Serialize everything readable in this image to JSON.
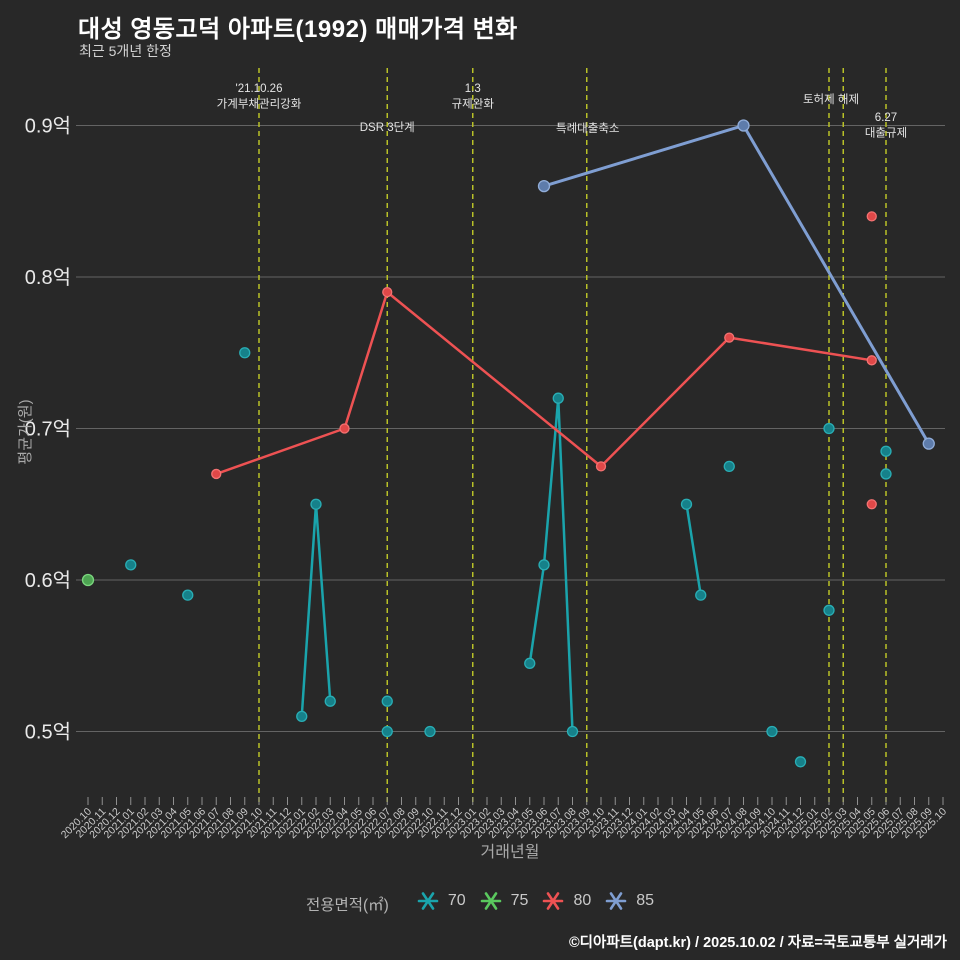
{
  "header": {
    "title": "대성 영동고덕 아파트(1992) 매매가격 변화",
    "subtitle": "최근 5개년 한정"
  },
  "footer": {
    "credit": "©디아파트(dapt.kr) / 2025.10.02 / 자료=국토교통부 실거래가"
  },
  "chart_data": {
    "type": "line",
    "title": "대성 영동고덕 아파트(1992) 매매가격 변화",
    "subtitle": "최근 5개년 한정",
    "xlabel": "거래년월",
    "ylabel": "평균가(원)",
    "legend_title": "전용면적(㎡)",
    "legend_position": "bottom",
    "grid": true,
    "unit": "억",
    "ylim": [
      0.5,
      0.9
    ],
    "y_ticks": [
      {
        "label": "0.5억",
        "value": 0.5
      },
      {
        "label": "0.6억",
        "value": 0.6
      },
      {
        "label": "0.7억",
        "value": 0.7
      },
      {
        "label": "0.8억",
        "value": 0.8
      },
      {
        "label": "0.9억",
        "value": 0.9
      }
    ],
    "x_categories": [
      "2020.10",
      "2020.11",
      "2020.12",
      "2021.01",
      "2021.02",
      "2021.03",
      "2021.04",
      "2021.05",
      "2021.06",
      "2021.07",
      "2021.08",
      "2021.09",
      "2021.10",
      "2021.11",
      "2021.12",
      "2022.01",
      "2022.02",
      "2022.03",
      "2022.04",
      "2022.05",
      "2022.06",
      "2022.07",
      "2022.08",
      "2022.09",
      "2022.10",
      "2022.11",
      "2022.12",
      "2023.01",
      "2023.02",
      "2023.03",
      "2023.04",
      "2023.05",
      "2023.06",
      "2023.07",
      "2023.08",
      "2023.09",
      "2023.10",
      "2023.11",
      "2023.12",
      "2024.01",
      "2024.02",
      "2024.03",
      "2024.04",
      "2024.05",
      "2024.06",
      "2024.07",
      "2024.08",
      "2024.09",
      "2024.10",
      "2024.11",
      "2024.12",
      "2025.01",
      "2025.02",
      "2025.03",
      "2025.04",
      "2025.05",
      "2025.06",
      "2025.07",
      "2025.08",
      "2025.09",
      "2025.10"
    ],
    "series": [
      {
        "name": "70",
        "color": "#1aa4ac",
        "marker_fill": "#16818a",
        "marker_stroke": "#29aeb5",
        "line_width": 2.5,
        "marker_r": 5,
        "segments": [
          [
            [
              "2021.01",
              0.61
            ]
          ],
          [
            [
              "2021.05",
              0.59
            ]
          ],
          [
            [
              "2021.09",
              0.75
            ]
          ],
          [
            [
              "2022.01",
              0.51
            ],
            [
              "2022.02",
              0.65
            ],
            [
              "2022.03",
              0.52
            ]
          ],
          [
            [
              "2022.07",
              0.52
            ]
          ],
          [
            [
              "2022.07",
              0.5
            ]
          ],
          [
            [
              "2022.10",
              0.5
            ]
          ],
          [
            [
              "2023.05",
              0.545
            ],
            [
              "2023.06",
              0.61
            ],
            [
              "2023.07",
              0.72
            ],
            [
              "2023.08",
              0.5
            ]
          ],
          [
            [
              "2024.04",
              0.65
            ],
            [
              "2024.05",
              0.59
            ]
          ],
          [
            [
              "2024.07",
              0.675
            ]
          ],
          [
            [
              "2024.10",
              0.5
            ]
          ],
          [
            [
              "2024.12",
              0.48
            ]
          ],
          [
            [
              "2025.02",
              0.7
            ]
          ],
          [
            [
              "2025.02",
              0.58
            ]
          ],
          [
            [
              "2025.06",
              0.685
            ]
          ],
          [
            [
              "2025.06",
              0.67
            ]
          ]
        ]
      },
      {
        "name": "75",
        "color": "#5ac95e",
        "marker_fill": "#4da452",
        "marker_stroke": "#7cd77f",
        "line_width": 2.5,
        "marker_r": 5.5,
        "segments": [
          [
            [
              "2020.10",
              0.6
            ]
          ]
        ]
      },
      {
        "name": "80",
        "color": "#ee5253",
        "marker_fill": "#e04848",
        "marker_stroke": "#f47272",
        "line_width": 2.5,
        "marker_r": 4.5,
        "segments": [
          [
            [
              "2021.07",
              0.67
            ],
            [
              "2022.04",
              0.7
            ],
            [
              "2022.07",
              0.79
            ],
            [
              "2023.10",
              0.675
            ],
            [
              "2024.07",
              0.76
            ],
            [
              "2025.05",
              0.745
            ]
          ],
          [
            [
              "2025.05",
              0.84
            ]
          ],
          [
            [
              "2025.05",
              0.65
            ]
          ]
        ]
      },
      {
        "name": "85",
        "color": "#7f9ed2",
        "marker_fill": "#5e7cab",
        "marker_stroke": "#91add9",
        "line_width": 3,
        "marker_r": 5.5,
        "segments": [
          [
            [
              "2023.06",
              0.86
            ],
            [
              "2024.08",
              0.9
            ],
            [
              "2025.09",
              0.69
            ]
          ]
        ]
      }
    ],
    "events": [
      {
        "month": "2021.10",
        "label_lines": [
          "'21.10.26",
          "가계부채관리강화"
        ],
        "label_y": 92,
        "dx": 0
      },
      {
        "month": "2022.07",
        "label_lines": [
          "DSR 3단계"
        ],
        "label_y": 131,
        "dx": 0
      },
      {
        "month": "2023.01",
        "label_lines": [
          "1.3",
          "규제완화"
        ],
        "label_y": 92,
        "dx": 0
      },
      {
        "month": "2023.09",
        "label_lines": [
          "특례대출축소"
        ],
        "label_y": 132,
        "dx": 1
      },
      {
        "month": "2025.02",
        "label_lines": [
          "토허제 해제"
        ],
        "label_y": 103,
        "dx": 2
      },
      {
        "month": "2025.03",
        "label_lines": [],
        "label_y": 0,
        "dx": 0
      },
      {
        "month": "2025.06",
        "label_lines": [
          "6.27",
          "대출규제"
        ],
        "label_y": 121,
        "dx": 0
      }
    ],
    "event_line_color": "#b9c127",
    "grid_color": "#969696",
    "background_color": "#282828"
  }
}
